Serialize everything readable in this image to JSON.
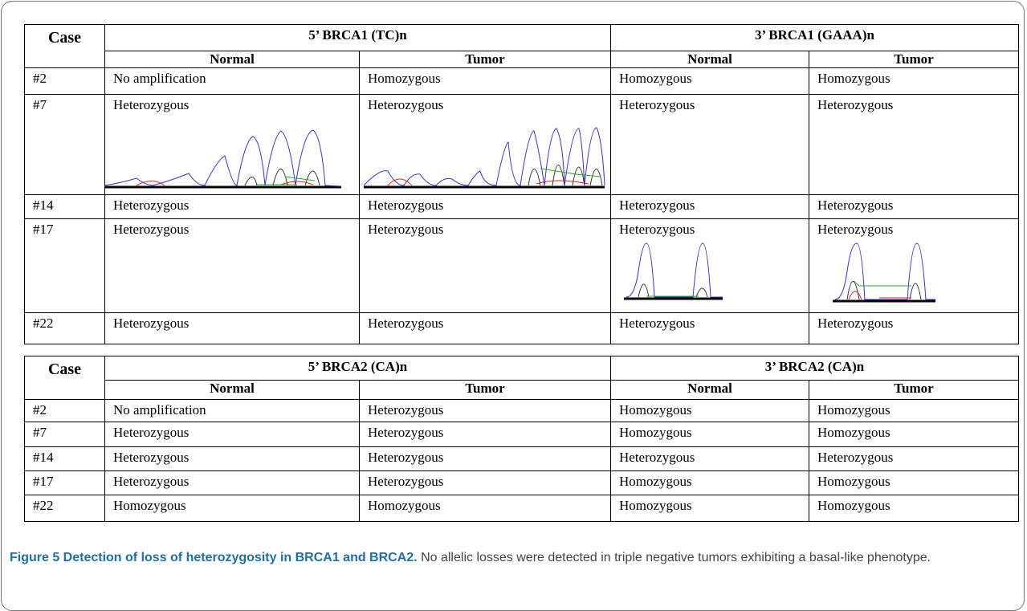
{
  "tables": [
    {
      "header": [
        "Case",
        "5’ BRCA1 (TC)n",
        "3’ BRCA1 (GAAA)n"
      ],
      "subheader": [
        "Normal",
        "Tumor",
        "Normal",
        "Tumor"
      ],
      "rows": [
        [
          "#2",
          "No amplification",
          "Homozygous",
          "Homozygous",
          "Homozygous"
        ],
        [
          "#7",
          "Heterozygous",
          "Heterozygous",
          "Heterozygous",
          "Heterozygous"
        ],
        [
          "#14",
          "Heterozygous",
          "Heterozygous",
          "Heterozygous",
          "Heterozygous"
        ],
        [
          "#17",
          "Heterozygous",
          "Heterozygous",
          "Heterozygous",
          "Heterozygous"
        ],
        [
          "#22",
          "Heterozygous",
          "Heterozygous",
          "Heterozygous",
          "Heterozygous"
        ]
      ]
    },
    {
      "header": [
        "Case",
        "5’ BRCA2 (CA)n",
        "3’ BRCA2 (CA)n"
      ],
      "subheader": [
        "Normal",
        "Tumor",
        "Normal",
        "Tumor"
      ],
      "rows": [
        [
          "#2",
          "No amplification",
          "Heterozygous",
          "Homozygous",
          "Homozygous"
        ],
        [
          "#7",
          "Heterozygous",
          "Heterozygous",
          "Homozygous",
          "Homozygous"
        ],
        [
          "#14",
          "Heterozygous",
          "Heterozygous",
          "Heterozygous",
          "Heterozygous"
        ],
        [
          "#17",
          "Heterozygous",
          "Heterozygous",
          "Homozygous",
          "Homozygous"
        ],
        [
          "#22",
          "Homozygous",
          "Homozygous",
          "Homozygous",
          "Homozygous"
        ]
      ]
    }
  ],
  "caption": {
    "label": "Figure 5 Detection of loss of heterozygosity in BRCA1 and BRCA2.",
    "text": "No allelic losses were detected in triple negative tumors exhibiting a basal-like phenotype."
  }
}
